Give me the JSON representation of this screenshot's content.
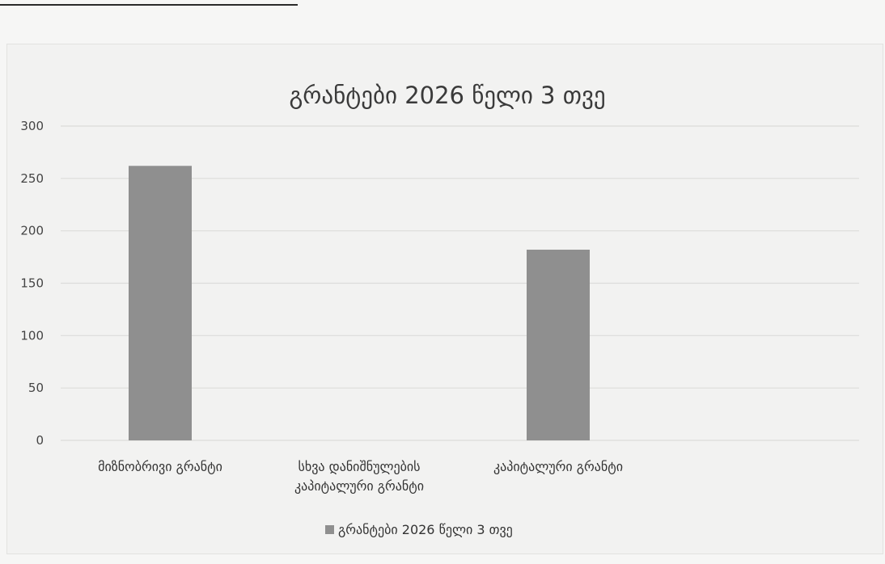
{
  "chart_data": {
    "type": "bar",
    "title": "გრანტები 2026 წელი 3 თვე",
    "categories": [
      [
        "მიზნობრივი გრანტი"
      ],
      [
        "სხვა დანიშნულების",
        "კაპიტალური გრანტი"
      ],
      [
        "კაპიტალური გრანტი"
      ]
    ],
    "series": [
      {
        "name": "გრანტები 2026 წელი 3 თვე",
        "values": [
          262,
          0,
          182
        ]
      }
    ],
    "ylim": [
      0,
      300
    ],
    "yticks": [
      0,
      50,
      100,
      150,
      200,
      250,
      300
    ],
    "xlabel": "",
    "ylabel": "",
    "grid": true,
    "legend": "bottom-center",
    "colors": {
      "bar": "#8f8f8f",
      "legend_swatch": "#8f8f8f"
    }
  }
}
